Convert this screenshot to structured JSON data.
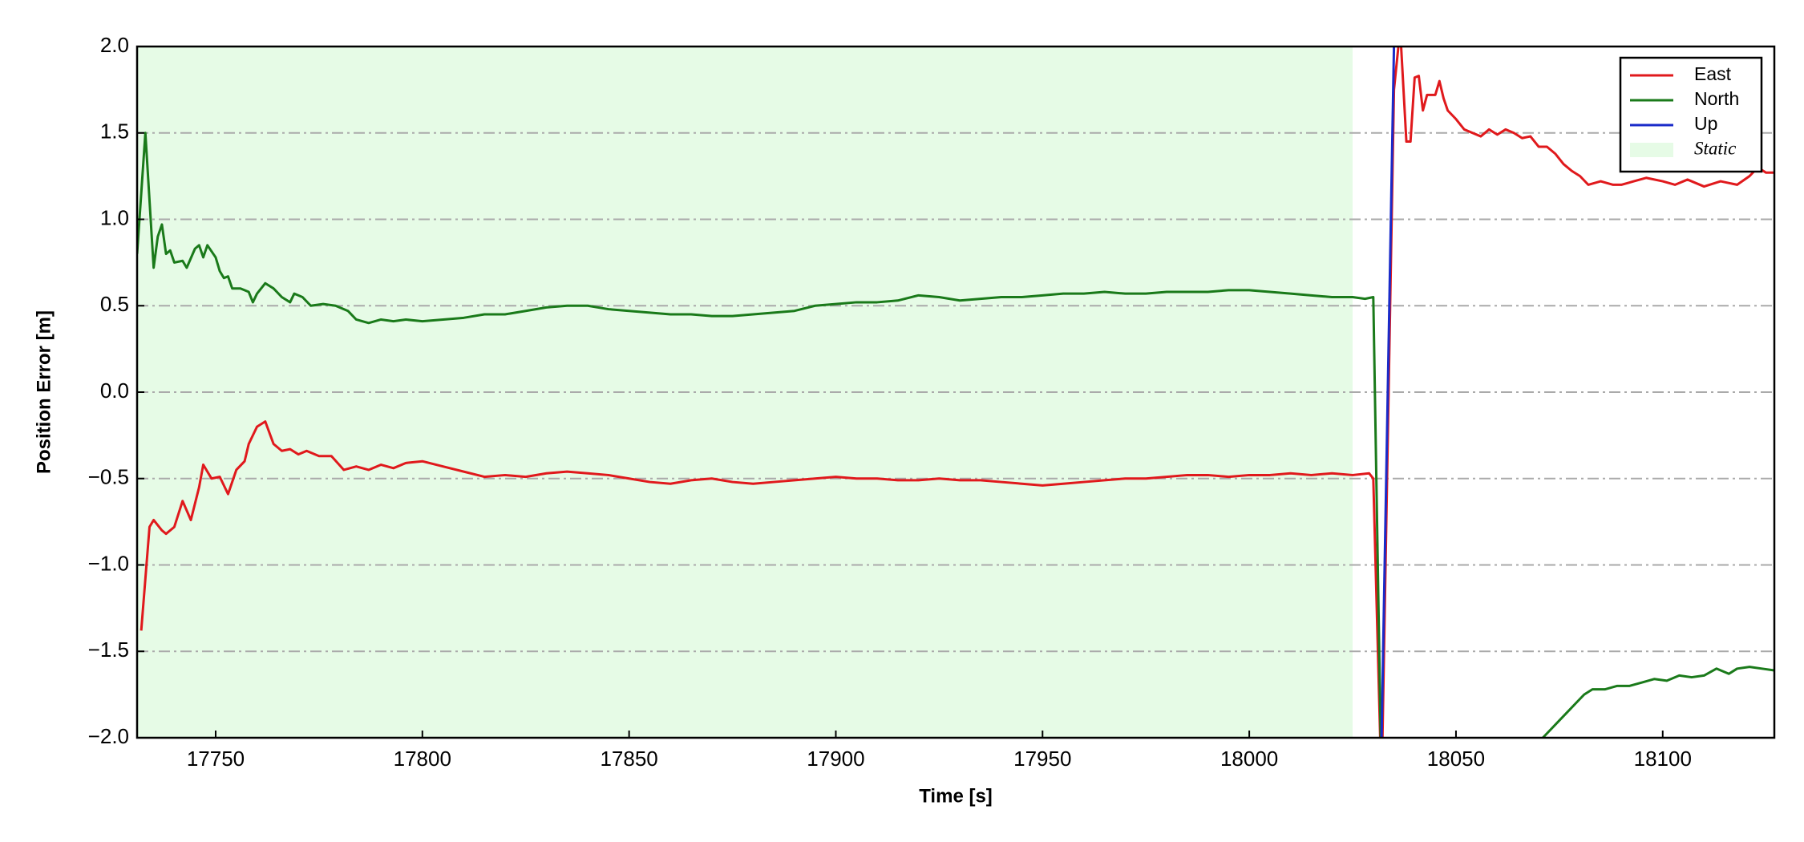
{
  "chart_data": {
    "type": "line",
    "xlabel": "Time [s]",
    "ylabel": "Position Error [m]",
    "xlim": [
      17731,
      18127
    ],
    "ylim": [
      -2.0,
      2.0
    ],
    "xticks": [
      17750,
      17800,
      17850,
      17900,
      17950,
      18000,
      18050,
      18100
    ],
    "yticks": [
      {
        "value": -2.0,
        "label": "−2.0"
      },
      {
        "value": -1.5,
        "label": "−1.5"
      },
      {
        "value": -1.0,
        "label": "−1.0"
      },
      {
        "value": -0.5,
        "label": "−0.5"
      },
      {
        "value": 0.0,
        "label": "0.0"
      },
      {
        "value": 0.5,
        "label": "0.5"
      },
      {
        "value": 1.0,
        "label": "1.0"
      },
      {
        "value": 1.5,
        "label": "1.5"
      },
      {
        "value": 2.0,
        "label": "2.0"
      }
    ],
    "grid": "y",
    "legend": "upper right",
    "spans": [
      {
        "name": "Static",
        "color": "#e6fbe6",
        "x": [
          17731,
          18025
        ]
      }
    ],
    "series": [
      {
        "name": "East",
        "color": "#e0191c",
        "x": [
          17732,
          17734,
          17735,
          17737,
          17738,
          17740,
          17742,
          17744,
          17746,
          17747,
          17749,
          17751,
          17753,
          17755,
          17757,
          17758,
          17760,
          17762,
          17764,
          17766,
          17768,
          17770,
          17772,
          17775,
          17778,
          17781,
          17784,
          17787,
          17790,
          17793,
          17796,
          17800,
          17805,
          17810,
          17815,
          17820,
          17825,
          17830,
          17835,
          17840,
          17845,
          17850,
          17855,
          17860,
          17865,
          17870,
          17875,
          17880,
          17885,
          17890,
          17895,
          17900,
          17905,
          17910,
          17915,
          17920,
          17925,
          17930,
          17935,
          17940,
          17945,
          17950,
          17955,
          17960,
          17965,
          17970,
          17975,
          17980,
          17985,
          17990,
          17995,
          18000,
          18005,
          18010,
          18015,
          18020,
          18025,
          18029,
          18030,
          18032,
          18035,
          18036.5,
          18038,
          18039,
          18040,
          18041,
          18042,
          18043,
          18045,
          18046,
          18047,
          18048,
          18050,
          18052,
          18054,
          18056,
          18058,
          18060,
          18062,
          18064,
          18066,
          18068,
          18070,
          18072,
          18074,
          18076,
          18078,
          18080,
          18082,
          18085,
          18088,
          18090,
          18093,
          18096,
          18100,
          18103,
          18106,
          18110,
          18114,
          18118,
          18121,
          18123,
          18125,
          18127
        ],
        "values": [
          -1.38,
          -0.78,
          -0.74,
          -0.8,
          -0.82,
          -0.78,
          -0.63,
          -0.74,
          -0.55,
          -0.42,
          -0.5,
          -0.49,
          -0.59,
          -0.45,
          -0.4,
          -0.3,
          -0.2,
          -0.17,
          -0.3,
          -0.34,
          -0.33,
          -0.36,
          -0.34,
          -0.37,
          -0.37,
          -0.45,
          -0.43,
          -0.45,
          -0.42,
          -0.44,
          -0.41,
          -0.4,
          -0.43,
          -0.46,
          -0.49,
          -0.48,
          -0.49,
          -0.47,
          -0.46,
          -0.47,
          -0.48,
          -0.5,
          -0.52,
          -0.53,
          -0.51,
          -0.5,
          -0.52,
          -0.53,
          -0.52,
          -0.51,
          -0.5,
          -0.49,
          -0.5,
          -0.5,
          -0.51,
          -0.51,
          -0.5,
          -0.51,
          -0.51,
          -0.52,
          -0.53,
          -0.54,
          -0.53,
          -0.52,
          -0.51,
          -0.5,
          -0.5,
          -0.49,
          -0.48,
          -0.48,
          -0.49,
          -0.48,
          -0.48,
          -0.47,
          -0.48,
          -0.47,
          -0.48,
          -0.47,
          -0.5,
          -2.3,
          1.75,
          2.1,
          1.45,
          1.45,
          1.82,
          1.83,
          1.63,
          1.72,
          1.72,
          1.8,
          1.7,
          1.63,
          1.58,
          1.52,
          1.5,
          1.48,
          1.52,
          1.49,
          1.52,
          1.5,
          1.47,
          1.48,
          1.42,
          1.42,
          1.38,
          1.32,
          1.28,
          1.25,
          1.2,
          1.22,
          1.2,
          1.2,
          1.22,
          1.24,
          1.22,
          1.2,
          1.23,
          1.19,
          1.22,
          1.2,
          1.25,
          1.3,
          1.27,
          1.27
        ]
      },
      {
        "name": "North",
        "color": "#1a7a1a",
        "x": [
          17731,
          17733,
          17735,
          17736,
          17737,
          17738,
          17739,
          17740,
          17742,
          17743,
          17745,
          17746,
          17747,
          17748,
          17750,
          17751,
          17752,
          17753,
          17754,
          17756,
          17758,
          17759,
          17760,
          17762,
          17764,
          17766,
          17768,
          17769,
          17771,
          17773,
          17776,
          17779,
          17782,
          17784,
          17787,
          17790,
          17793,
          17796,
          17800,
          17805,
          17810,
          17815,
          17820,
          17825,
          17830,
          17835,
          17840,
          17845,
          17850,
          17855,
          17860,
          17865,
          17870,
          17875,
          17880,
          17885,
          17890,
          17895,
          17900,
          17905,
          17910,
          17915,
          17920,
          17925,
          17930,
          17935,
          17940,
          17945,
          17950,
          17955,
          17960,
          17965,
          17970,
          17975,
          17980,
          17985,
          17990,
          17995,
          18000,
          18005,
          18010,
          18015,
          18020,
          18025,
          18028,
          18030,
          18032,
          18050,
          18071,
          18073,
          18075,
          18077,
          18079,
          18081,
          18083,
          18086,
          18089,
          18092,
          18095,
          18098,
          18101,
          18104,
          18107,
          18110,
          18113,
          18116,
          18118,
          18121,
          18124,
          18127
        ],
        "values": [
          0.8,
          1.5,
          0.72,
          0.9,
          0.97,
          0.8,
          0.82,
          0.75,
          0.76,
          0.72,
          0.83,
          0.85,
          0.78,
          0.85,
          0.78,
          0.7,
          0.66,
          0.67,
          0.6,
          0.6,
          0.58,
          0.52,
          0.57,
          0.63,
          0.6,
          0.55,
          0.52,
          0.57,
          0.55,
          0.5,
          0.51,
          0.5,
          0.47,
          0.42,
          0.4,
          0.42,
          0.41,
          0.42,
          0.41,
          0.42,
          0.43,
          0.45,
          0.45,
          0.47,
          0.49,
          0.5,
          0.5,
          0.48,
          0.47,
          0.46,
          0.45,
          0.45,
          0.44,
          0.44,
          0.45,
          0.46,
          0.47,
          0.5,
          0.51,
          0.52,
          0.52,
          0.53,
          0.56,
          0.55,
          0.53,
          0.54,
          0.55,
          0.55,
          0.56,
          0.57,
          0.57,
          0.58,
          0.57,
          0.57,
          0.58,
          0.58,
          0.58,
          0.59,
          0.59,
          0.58,
          0.57,
          0.56,
          0.55,
          0.55,
          0.54,
          0.55,
          -2.3,
          null,
          -2.0,
          -1.95,
          -1.9,
          -1.85,
          -1.8,
          -1.75,
          -1.72,
          -1.72,
          -1.7,
          -1.7,
          -1.68,
          -1.66,
          -1.67,
          -1.64,
          -1.65,
          -1.64,
          -1.6,
          -1.63,
          -1.6,
          -1.59,
          -1.6,
          -1.61
        ]
      },
      {
        "name": "Up",
        "color": "#1a2bc9",
        "x": [
          18032,
          18035
        ],
        "values": [
          -2.0,
          2.0
        ]
      }
    ]
  }
}
